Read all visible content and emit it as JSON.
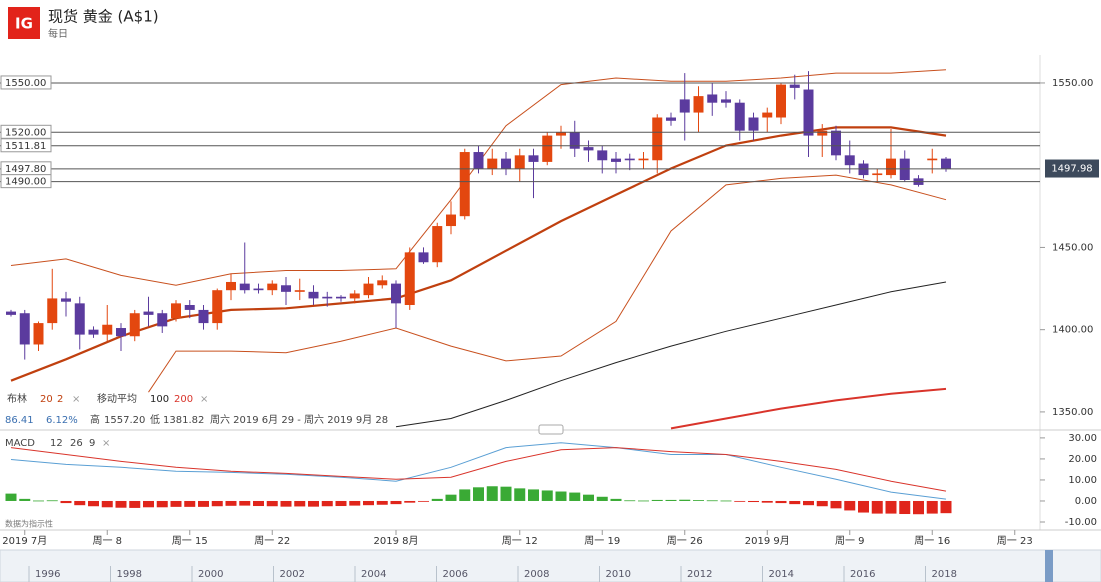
{
  "chart_data": {
    "type": "candlestick",
    "logo": "IG",
    "title": "现货 黄金 (A$1)",
    "subtitle": "每日",
    "categories": [
      null,
      "2019 7月",
      null,
      null,
      null,
      null,
      null,
      "周一 8",
      null,
      null,
      null,
      null,
      null,
      "周一 15",
      null,
      null,
      null,
      null,
      null,
      "周一 22",
      null,
      null,
      null,
      null,
      null,
      null,
      null,
      null,
      "2019 8月",
      null,
      null,
      null,
      null,
      null,
      null,
      null,
      null,
      "周一 12",
      null,
      null,
      null,
      null,
      null,
      "周一 19",
      null,
      null,
      null,
      null,
      null,
      "周一 26",
      null,
      null,
      null,
      null,
      null,
      "2019 9月",
      null,
      null,
      null,
      null,
      null,
      "周一 9",
      null,
      null,
      null,
      null,
      null,
      "周一 16",
      null,
      null,
      null,
      null,
      null,
      "周一 23"
    ],
    "open": [
      1411,
      1410,
      1391,
      1404,
      1419,
      1416,
      1400,
      1397,
      1401,
      1396,
      1411,
      1410,
      1407,
      1415,
      1412,
      1404,
      1424,
      1428,
      1425,
      1424,
      1427,
      1423,
      1423,
      1420,
      1420,
      1419,
      1421,
      1427,
      1428,
      1415,
      1447,
      1441,
      1463,
      1469,
      1508,
      1498,
      1504,
      1498,
      1506,
      1502,
      1518,
      1520,
      1511,
      1509,
      1504,
      1504,
      1503,
      1503,
      1529,
      1540,
      1532,
      1543,
      1540,
      1538,
      1529,
      1529,
      1529,
      1549,
      1546,
      1518,
      1521,
      1506,
      1501,
      1494,
      1494,
      1504,
      1492,
      1503,
      1504,
      null,
      null,
      null,
      null,
      null
    ],
    "high": [
      1412,
      1412,
      1405,
      1437,
      1423,
      1420,
      1402,
      1415,
      1404,
      1412,
      1420,
      1412,
      1418,
      1418,
      1415,
      1425,
      1434,
      1453,
      1428,
      1430,
      1432,
      1431,
      1427,
      1423,
      1421,
      1424,
      1432,
      1433,
      1430,
      1450,
      1450,
      1465,
      1478,
      1510,
      1512,
      1510,
      1508,
      1510,
      1510,
      1520,
      1524,
      1527,
      1515,
      1512,
      1508,
      1507,
      1508,
      1531,
      1532,
      1556,
      1548,
      1550,
      1545,
      1540,
      1532,
      1535,
      1550,
      1555,
      1557.2,
      1525,
      1524,
      1515,
      1503,
      1498,
      1522,
      1509,
      1494,
      1510,
      1505,
      null,
      null,
      null,
      null,
      null
    ],
    "low": [
      1408,
      1381.82,
      1387,
      1400,
      1408,
      1388,
      1395,
      1393,
      1387,
      1393,
      1402,
      1398,
      1405,
      1407,
      1400,
      1400,
      1418,
      1422,
      1422,
      1421,
      1415,
      1418,
      1415,
      1414,
      1417,
      1416,
      1419,
      1425,
      1401,
      1412,
      1440,
      1438,
      1458,
      1467,
      1495,
      1494,
      1494,
      1490,
      1480,
      1500,
      1510,
      1505,
      1502,
      1495,
      1495,
      1497,
      1498,
      1495,
      1524,
      1515,
      1520,
      1530,
      1535,
      1515,
      1515,
      1520,
      1525,
      1540,
      1505,
      1505,
      1503,
      1495,
      1492,
      1490,
      1492,
      1490,
      1487,
      1495,
      1496,
      null,
      null,
      null,
      null,
      null
    ],
    "close": [
      1409,
      1391,
      1404,
      1419,
      1417,
      1397,
      1397,
      1403,
      1396,
      1410,
      1409,
      1402,
      1416,
      1412,
      1404,
      1424,
      1429,
      1424,
      1424,
      1428,
      1423,
      1424,
      1419,
      1419,
      1419,
      1422,
      1428,
      1430,
      1416,
      1447,
      1441,
      1463,
      1470,
      1508,
      1498,
      1504,
      1498,
      1506,
      1502,
      1518,
      1520,
      1510,
      1509,
      1503,
      1502,
      1503,
      1504,
      1529,
      1527,
      1532,
      1542,
      1538,
      1538,
      1521,
      1521,
      1532,
      1549,
      1547,
      1518,
      1521,
      1506,
      1500,
      1494,
      1495,
      1504,
      1491,
      1488,
      1504,
      1497.98,
      null,
      null,
      null,
      null,
      null
    ],
    "up_color": "#e3470f",
    "down_color": "#5b3b9e",
    "ylim": [
      1339,
      1567
    ],
    "yticks": [
      {
        "value": 1550,
        "label": "1550.00"
      },
      {
        "value": 1450,
        "label": "1450.00"
      },
      {
        "value": 1400,
        "label": "1400.00"
      },
      {
        "value": 1350,
        "label": "1350.00"
      }
    ],
    "levels": [
      {
        "value": 1550,
        "label": "1550.00"
      },
      {
        "value": 1520,
        "label": "1520.00"
      },
      {
        "value": 1511.81,
        "label": "1511.81"
      },
      {
        "value": 1497.8,
        "label": "1497.80"
      },
      {
        "value": 1490,
        "label": "1490.00"
      }
    ],
    "last_price": 1497.98,
    "lines": [
      {
        "color": "#c8501e",
        "width": 1,
        "x": [
          0,
          4,
          8,
          12,
          16,
          20,
          24,
          28,
          32,
          36,
          40,
          44,
          48,
          52,
          56,
          60,
          64,
          68
        ],
        "values": [
          1439,
          1443,
          1433,
          1427,
          1434,
          1436,
          1436,
          1437,
          1479,
          1524,
          1549,
          1553,
          1551,
          1551,
          1553,
          1556,
          1556,
          1558
        ]
      },
      {
        "color": "#c0400f",
        "width": 2.2,
        "x": [
          0,
          4,
          8,
          12,
          16,
          20,
          24,
          28,
          32,
          36,
          40,
          44,
          48,
          52,
          56,
          60,
          64,
          68
        ],
        "values": [
          1369,
          1382,
          1396,
          1407,
          1412,
          1413,
          1416,
          1419,
          1430,
          1448,
          1466,
          1482,
          1498,
          1512,
          1518,
          1523,
          1523,
          1518
        ]
      },
      {
        "color": "#c8501e",
        "width": 1,
        "x": [
          10,
          12,
          16,
          20,
          24,
          28,
          32,
          36,
          40,
          44,
          48,
          52,
          56,
          60,
          64,
          68
        ],
        "values": [
          1362,
          1387,
          1387,
          1386,
          1393,
          1401,
          1390,
          1381,
          1384,
          1405,
          1460,
          1488,
          1492,
          1494,
          1488,
          1479
        ]
      },
      {
        "color": "#222222",
        "width": 1,
        "x": [
          28,
          32,
          36,
          40,
          44,
          48,
          52,
          56,
          60,
          64,
          68
        ],
        "values": [
          1341,
          1346,
          1357,
          1369,
          1380,
          1390,
          1399,
          1407,
          1415,
          1423,
          1429
        ]
      },
      {
        "color": "#d9342b",
        "width": 2,
        "x": [
          48,
          52,
          56,
          60,
          64,
          68
        ],
        "values": [
          1340,
          1346,
          1352,
          1357,
          1361,
          1364
        ]
      }
    ],
    "bollinger": {
      "label": "布林",
      "period": 20,
      "deviation": 2,
      "close": "×"
    },
    "moving_average": {
      "label": "移动平均",
      "periods": [
        100,
        200
      ],
      "close": "×"
    },
    "stats": {
      "change": 86.41,
      "change_pct": {
        "value": 6.12,
        "label": "6.12%"
      },
      "high_label": "高",
      "high": {
        "value": 1557.2,
        "label": "1557.20"
      },
      "low_label": "低",
      "low": 1381.82,
      "range": "周六 2019 6月 29 - 周六 2019 9月 28"
    },
    "macd": {
      "label": "MACD",
      "params": [
        12,
        26,
        9
      ],
      "close": "×",
      "ylim": [
        -13.8,
        32.8
      ],
      "yticks": [
        {
          "value": 30,
          "label": "30.00"
        },
        {
          "value": 20,
          "label": "20.00"
        },
        {
          "value": 10,
          "label": "10.00"
        },
        {
          "value": 0,
          "label": "0.00"
        },
        {
          "value": -10,
          "label": "-10.00"
        }
      ],
      "pos_color": "#3aaa35",
      "neg_color": "#e0251b",
      "histogram": [
        3.5,
        1.0,
        0.2,
        0.3,
        -1.0,
        -2.0,
        -2.5,
        -3.0,
        -3.2,
        -3.3,
        -3.0,
        -3.0,
        -2.8,
        -2.8,
        -2.8,
        -2.5,
        -2.3,
        -2.2,
        -2.4,
        -2.5,
        -2.7,
        -2.6,
        -2.7,
        -2.5,
        -2.4,
        -2.2,
        -2.0,
        -1.8,
        -1.5,
        -0.8,
        -0.2,
        1.0,
        3.0,
        5.5,
        6.5,
        7.0,
        6.8,
        6.0,
        5.5,
        5.0,
        4.5,
        4.0,
        3.0,
        2.0,
        1.0,
        0.3,
        0.2,
        0.5,
        0.5,
        0.6,
        0.4,
        0.3,
        0.2,
        -0.3,
        -0.5,
        -0.8,
        -1.0,
        -1.5,
        -2.0,
        -2.5,
        -3.5,
        -4.5,
        -5.5,
        -6.0,
        -6.0,
        -6.2,
        -6.3,
        -6.0,
        -5.8,
        null,
        null,
        null,
        null,
        null
      ],
      "lines": [
        {
          "color": "#5a9fd4",
          "x": [
            0,
            4,
            8,
            12,
            16,
            20,
            24,
            28,
            32,
            36,
            40,
            44,
            48,
            52,
            56,
            60,
            64,
            68
          ],
          "values": [
            19.7,
            17.4,
            16.0,
            14.1,
            13.6,
            12.7,
            11.3,
            9.4,
            16.0,
            25.4,
            27.7,
            25.4,
            22.1,
            22.1,
            16.0,
            10.3,
            4.2,
            0.9
          ]
        },
        {
          "color": "#d9342b",
          "x": [
            0,
            4,
            8,
            12,
            16,
            20,
            24,
            28,
            32,
            36,
            40,
            44,
            48,
            52,
            56,
            60,
            64,
            68
          ],
          "values": [
            25.4,
            22.1,
            18.8,
            16.0,
            14.1,
            13.1,
            11.7,
            10.3,
            11.3,
            18.8,
            24.4,
            25.4,
            23.5,
            22.1,
            18.8,
            15.0,
            9.4,
            4.7
          ]
        }
      ]
    },
    "note": "数据为指示性",
    "navigator_years": [
      "1996",
      "1998",
      "2000",
      "2002",
      "2004",
      "2006",
      "2008",
      "2010",
      "2012",
      "2014",
      "2016",
      "2018"
    ]
  }
}
